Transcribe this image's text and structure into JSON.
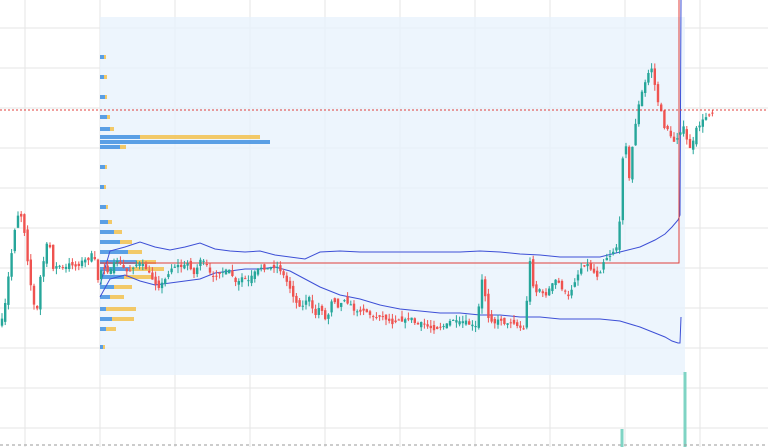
{
  "chart_data": {
    "type": "candlestick",
    "title": "",
    "xlabel": "",
    "ylabel": "",
    "grid": true,
    "ylim": [
      0,
      447
    ],
    "colors": {
      "up": "#26a69a",
      "down": "#ef5350",
      "band": "#3d4fd6",
      "poc": "#e0403c",
      "crosshair": "#e0403c",
      "range_fill": "#e8f2fc",
      "profile_blue": "#3f8fe0",
      "profile_yellow": "#f2c14e",
      "grid": "#e6e6e6",
      "volume": "#7fd4c4"
    },
    "price_path": [
      [
        0,
        124
      ],
      [
        5,
        128
      ],
      [
        10,
        170
      ],
      [
        14,
        200
      ],
      [
        18,
        230
      ],
      [
        22,
        235
      ],
      [
        26,
        215
      ],
      [
        30,
        180
      ],
      [
        34,
        150
      ],
      [
        38,
        130
      ],
      [
        42,
        170
      ],
      [
        46,
        190
      ],
      [
        50,
        210
      ],
      [
        55,
        178
      ],
      [
        60,
        182
      ],
      [
        66,
        178
      ],
      [
        72,
        184
      ],
      [
        78,
        180
      ],
      [
        84,
        186
      ],
      [
        90,
        188
      ],
      [
        95,
        195
      ],
      [
        100,
        165
      ],
      [
        104,
        182
      ],
      [
        108,
        176
      ],
      [
        112,
        176
      ],
      [
        118,
        188
      ],
      [
        124,
        180
      ],
      [
        130,
        174
      ],
      [
        136,
        182
      ],
      [
        142,
        184
      ],
      [
        148,
        178
      ],
      [
        154,
        168
      ],
      [
        160,
        160
      ],
      [
        166,
        166
      ],
      [
        172,
        178
      ],
      [
        178,
        182
      ],
      [
        184,
        180
      ],
      [
        190,
        184
      ],
      [
        196,
        172
      ],
      [
        202,
        188
      ],
      [
        208,
        182
      ],
      [
        214,
        168
      ],
      [
        220,
        174
      ],
      [
        226,
        176
      ],
      [
        232,
        176
      ],
      [
        238,
        162
      ],
      [
        244,
        170
      ],
      [
        250,
        166
      ],
      [
        256,
        174
      ],
      [
        262,
        180
      ],
      [
        268,
        178
      ],
      [
        274,
        180
      ],
      [
        280,
        180
      ],
      [
        286,
        170
      ],
      [
        292,
        158
      ],
      [
        298,
        144
      ],
      [
        304,
        140
      ],
      [
        310,
        152
      ],
      [
        316,
        130
      ],
      [
        322,
        142
      ],
      [
        328,
        124
      ],
      [
        334,
        150
      ],
      [
        340,
        140
      ],
      [
        346,
        148
      ],
      [
        352,
        142
      ],
      [
        358,
        134
      ],
      [
        364,
        138
      ],
      [
        370,
        134
      ],
      [
        376,
        128
      ],
      [
        382,
        132
      ],
      [
        388,
        128
      ],
      [
        394,
        124
      ],
      [
        400,
        128
      ],
      [
        406,
        126
      ],
      [
        412,
        130
      ],
      [
        418,
        122
      ],
      [
        424,
        124
      ],
      [
        430,
        120
      ],
      [
        436,
        118
      ],
      [
        442,
        120
      ],
      [
        448,
        122
      ],
      [
        454,
        128
      ],
      [
        460,
        124
      ],
      [
        466,
        126
      ],
      [
        472,
        122
      ],
      [
        478,
        120
      ],
      [
        484,
        170
      ],
      [
        490,
        130
      ],
      [
        496,
        124
      ],
      [
        502,
        128
      ],
      [
        508,
        122
      ],
      [
        514,
        126
      ],
      [
        520,
        120
      ],
      [
        526,
        118
      ],
      [
        532,
        190
      ],
      [
        536,
        150
      ],
      [
        540,
        160
      ],
      [
        546,
        150
      ],
      [
        552,
        160
      ],
      [
        558,
        168
      ],
      [
        564,
        158
      ],
      [
        570,
        150
      ],
      [
        576,
        165
      ],
      [
        582,
        178
      ],
      [
        588,
        184
      ],
      [
        594,
        176
      ],
      [
        600,
        170
      ],
      [
        606,
        188
      ],
      [
        612,
        192
      ],
      [
        618,
        200
      ],
      [
        622,
        230
      ],
      [
        626,
        330
      ],
      [
        630,
        260
      ],
      [
        634,
        300
      ],
      [
        638,
        330
      ],
      [
        642,
        350
      ],
      [
        646,
        362
      ],
      [
        650,
        374
      ],
      [
        654,
        380
      ],
      [
        658,
        350
      ],
      [
        662,
        338
      ],
      [
        666,
        320
      ],
      [
        670,
        318
      ],
      [
        674,
        304
      ],
      [
        678,
        308
      ],
      [
        682,
        316
      ],
      [
        686,
        320
      ],
      [
        690,
        298
      ],
      [
        694,
        302
      ],
      [
        698,
        318
      ],
      [
        704,
        326
      ],
      [
        710,
        333
      ],
      [
        714,
        334
      ]
    ],
    "overlay_series": [
      {
        "kind": "upper-band",
        "values": [
          [
            100,
            162
          ],
          [
            110,
            196
          ],
          [
            125,
            200
          ],
          [
            140,
            205
          ],
          [
            155,
            200
          ],
          [
            170,
            197
          ],
          [
            185,
            200
          ],
          [
            200,
            204
          ],
          [
            215,
            198
          ],
          [
            230,
            196
          ],
          [
            245,
            195
          ],
          [
            260,
            196
          ],
          [
            275,
            192
          ],
          [
            290,
            190
          ],
          [
            305,
            188
          ],
          [
            320,
            195
          ],
          [
            340,
            196
          ],
          [
            360,
            195
          ],
          [
            380,
            195
          ],
          [
            400,
            195
          ],
          [
            420,
            195
          ],
          [
            440,
            195
          ],
          [
            460,
            195
          ],
          [
            480,
            196
          ],
          [
            500,
            195
          ],
          [
            520,
            193
          ],
          [
            540,
            192
          ],
          [
            560,
            190
          ],
          [
            580,
            190
          ],
          [
            600,
            190
          ],
          [
            620,
            195
          ],
          [
            640,
            200
          ],
          [
            655,
            207
          ],
          [
            665,
            213
          ],
          [
            672,
            220
          ],
          [
            678,
            227
          ],
          [
            680,
            232
          ],
          [
            681,
            447
          ]
        ]
      },
      {
        "kind": "lower-band",
        "values": [
          [
            100,
            150
          ],
          [
            110,
            168
          ],
          [
            125,
            172
          ],
          [
            140,
            166
          ],
          [
            155,
            162
          ],
          [
            170,
            164
          ],
          [
            185,
            166
          ],
          [
            200,
            168
          ],
          [
            215,
            174
          ],
          [
            230,
            176
          ],
          [
            245,
            178
          ],
          [
            260,
            178
          ],
          [
            275,
            180
          ],
          [
            290,
            176
          ],
          [
            305,
            168
          ],
          [
            320,
            160
          ],
          [
            340,
            152
          ],
          [
            360,
            148
          ],
          [
            380,
            142
          ],
          [
            400,
            138
          ],
          [
            420,
            136
          ],
          [
            440,
            134
          ],
          [
            460,
            134
          ],
          [
            480,
            132
          ],
          [
            500,
            132
          ],
          [
            520,
            130
          ],
          [
            540,
            130
          ],
          [
            560,
            128
          ],
          [
            580,
            128
          ],
          [
            600,
            128
          ],
          [
            620,
            126
          ],
          [
            640,
            120
          ],
          [
            655,
            114
          ],
          [
            665,
            110
          ],
          [
            672,
            106
          ],
          [
            678,
            104
          ],
          [
            680,
            104
          ],
          [
            681,
            130
          ]
        ]
      },
      {
        "kind": "poc",
        "values": [
          [
            100,
            184
          ],
          [
            679,
            184
          ],
          [
            679,
            447
          ]
        ]
      }
    ],
    "overlay_levels": [
      {
        "kind": "crosshair",
        "value": 337
      }
    ],
    "volume_bars": [
      {
        "x": 622,
        "value": 18
      },
      {
        "x": 685,
        "value": 75
      }
    ],
    "volume_profile": [
      {
        "y": 390,
        "blue": 4,
        "yellow": 2
      },
      {
        "y": 370,
        "blue": 4,
        "yellow": 3
      },
      {
        "y": 350,
        "blue": 5,
        "yellow": 2
      },
      {
        "y": 330,
        "blue": 7,
        "yellow": 3
      },
      {
        "y": 318,
        "blue": 10,
        "yellow": 4
      },
      {
        "y": 310,
        "blue": 40,
        "yellow": 120
      },
      {
        "y": 305,
        "blue": 170,
        "yellow": 0
      },
      {
        "y": 300,
        "blue": 20,
        "yellow": 6
      },
      {
        "y": 280,
        "blue": 5,
        "yellow": 2
      },
      {
        "y": 260,
        "blue": 4,
        "yellow": 2
      },
      {
        "y": 240,
        "blue": 6,
        "yellow": 2
      },
      {
        "y": 225,
        "blue": 8,
        "yellow": 4
      },
      {
        "y": 215,
        "blue": 14,
        "yellow": 8
      },
      {
        "y": 205,
        "blue": 20,
        "yellow": 12
      },
      {
        "y": 195,
        "blue": 28,
        "yellow": 14
      },
      {
        "y": 185,
        "blue": 36,
        "yellow": 20
      },
      {
        "y": 178,
        "blue": 30,
        "yellow": 34
      },
      {
        "y": 170,
        "blue": 24,
        "yellow": 28
      },
      {
        "y": 160,
        "blue": 14,
        "yellow": 18
      },
      {
        "y": 150,
        "blue": 10,
        "yellow": 14
      },
      {
        "y": 138,
        "blue": 6,
        "yellow": 30
      },
      {
        "y": 128,
        "blue": 12,
        "yellow": 22
      },
      {
        "y": 118,
        "blue": 6,
        "yellow": 10
      },
      {
        "y": 100,
        "blue": 3,
        "yellow": 2
      }
    ],
    "range": {
      "x": [
        100,
        685
      ],
      "y": [
        72,
        430
      ]
    }
  }
}
